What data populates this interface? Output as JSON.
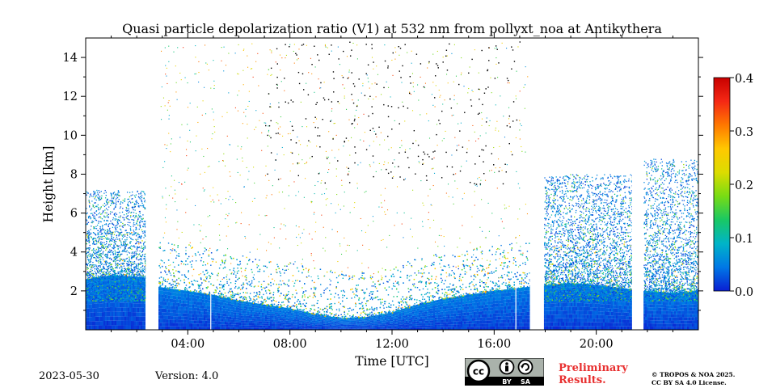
{
  "chart_data": {
    "type": "heatmap",
    "title": "Quasi particle depolarization ratio (V1) at 532 nm from pollyxt_noa at Antikythera",
    "xlabel": "Time [UTC]",
    "ylabel": "Height [km]",
    "xlim_hours": [
      0,
      24
    ],
    "ylim_km": [
      0,
      15
    ],
    "x_ticks": [
      {
        "value": 4,
        "label": "04:00"
      },
      {
        "value": 8,
        "label": "08:00"
      },
      {
        "value": 12,
        "label": "12:00"
      },
      {
        "value": 16,
        "label": "16:00"
      },
      {
        "value": 20,
        "label": "20:00"
      }
    ],
    "x_minor_ticks_hours": [
      1,
      2,
      3,
      5,
      6,
      7,
      9,
      10,
      11,
      13,
      14,
      15,
      17,
      18,
      19,
      21,
      22,
      23
    ],
    "y_ticks": [
      {
        "value": 2,
        "label": "2"
      },
      {
        "value": 4,
        "label": "4"
      },
      {
        "value": 6,
        "label": "6"
      },
      {
        "value": 8,
        "label": "8"
      },
      {
        "value": 10,
        "label": "10"
      },
      {
        "value": 12,
        "label": "12"
      },
      {
        "value": 14,
        "label": "14"
      }
    ],
    "colorbar": {
      "min": 0.0,
      "max": 0.4,
      "ticks": [
        {
          "value": 0.0,
          "label": "0.0"
        },
        {
          "value": 0.1,
          "label": "0.1"
        },
        {
          "value": 0.2,
          "label": "0.2"
        },
        {
          "value": 0.3,
          "label": "0.3"
        },
        {
          "value": 0.4,
          "label": "0.4"
        }
      ],
      "colormap": [
        "#0a1ed2",
        "#0078e6",
        "#00b4c8",
        "#19c864",
        "#78dc14",
        "#dcdc00",
        "#ffc800",
        "#ff7800",
        "#f52814",
        "#c80000"
      ]
    },
    "data_gaps_hours": [
      [
        2.35,
        2.85
      ],
      [
        17.4,
        17.95
      ],
      [
        21.4,
        21.85
      ]
    ],
    "thin_gaps_hours": [
      4.9,
      16.85
    ],
    "boundary_layer_top_km": [
      [
        0.0,
        2.6
      ],
      [
        1.0,
        2.8
      ],
      [
        2.3,
        2.7
      ],
      [
        2.9,
        2.2
      ],
      [
        4.0,
        2.0
      ],
      [
        5.0,
        1.8
      ],
      [
        6.0,
        1.5
      ],
      [
        7.0,
        1.3
      ],
      [
        8.0,
        1.1
      ],
      [
        9.0,
        0.8
      ],
      [
        10.0,
        0.6
      ],
      [
        11.0,
        0.65
      ],
      [
        12.0,
        0.9
      ],
      [
        13.0,
        1.3
      ],
      [
        14.0,
        1.6
      ],
      [
        15.0,
        1.8
      ],
      [
        16.0,
        2.0
      ],
      [
        17.3,
        2.2
      ],
      [
        18.0,
        2.3
      ],
      [
        19.0,
        2.4
      ],
      [
        20.0,
        2.3
      ],
      [
        21.3,
        2.1
      ],
      [
        21.9,
        2.0
      ],
      [
        23.0,
        1.9
      ],
      [
        24.0,
        2.0
      ]
    ],
    "cloud_layers_km": [
      {
        "x_start": 0.0,
        "x_end": 2.35,
        "top": 7.2
      },
      {
        "x_start": 17.95,
        "x_end": 21.4,
        "top": 8.0
      },
      {
        "x_start": 21.85,
        "x_end": 24.0,
        "top": 8.8
      }
    ],
    "noise_region_hours": [
      7.0,
      17.0
    ]
  },
  "footer": {
    "date": "2023-05-30",
    "version": "Version: 4.0",
    "preliminary_line1": "Preliminary",
    "preliminary_line2": "Results.",
    "copyright_line1": "© TROPOS & NOA 2025.",
    "copyright_line2": "CC BY SA 4.0 License.",
    "license_badge": {
      "by": "BY",
      "sa": "SA"
    }
  }
}
